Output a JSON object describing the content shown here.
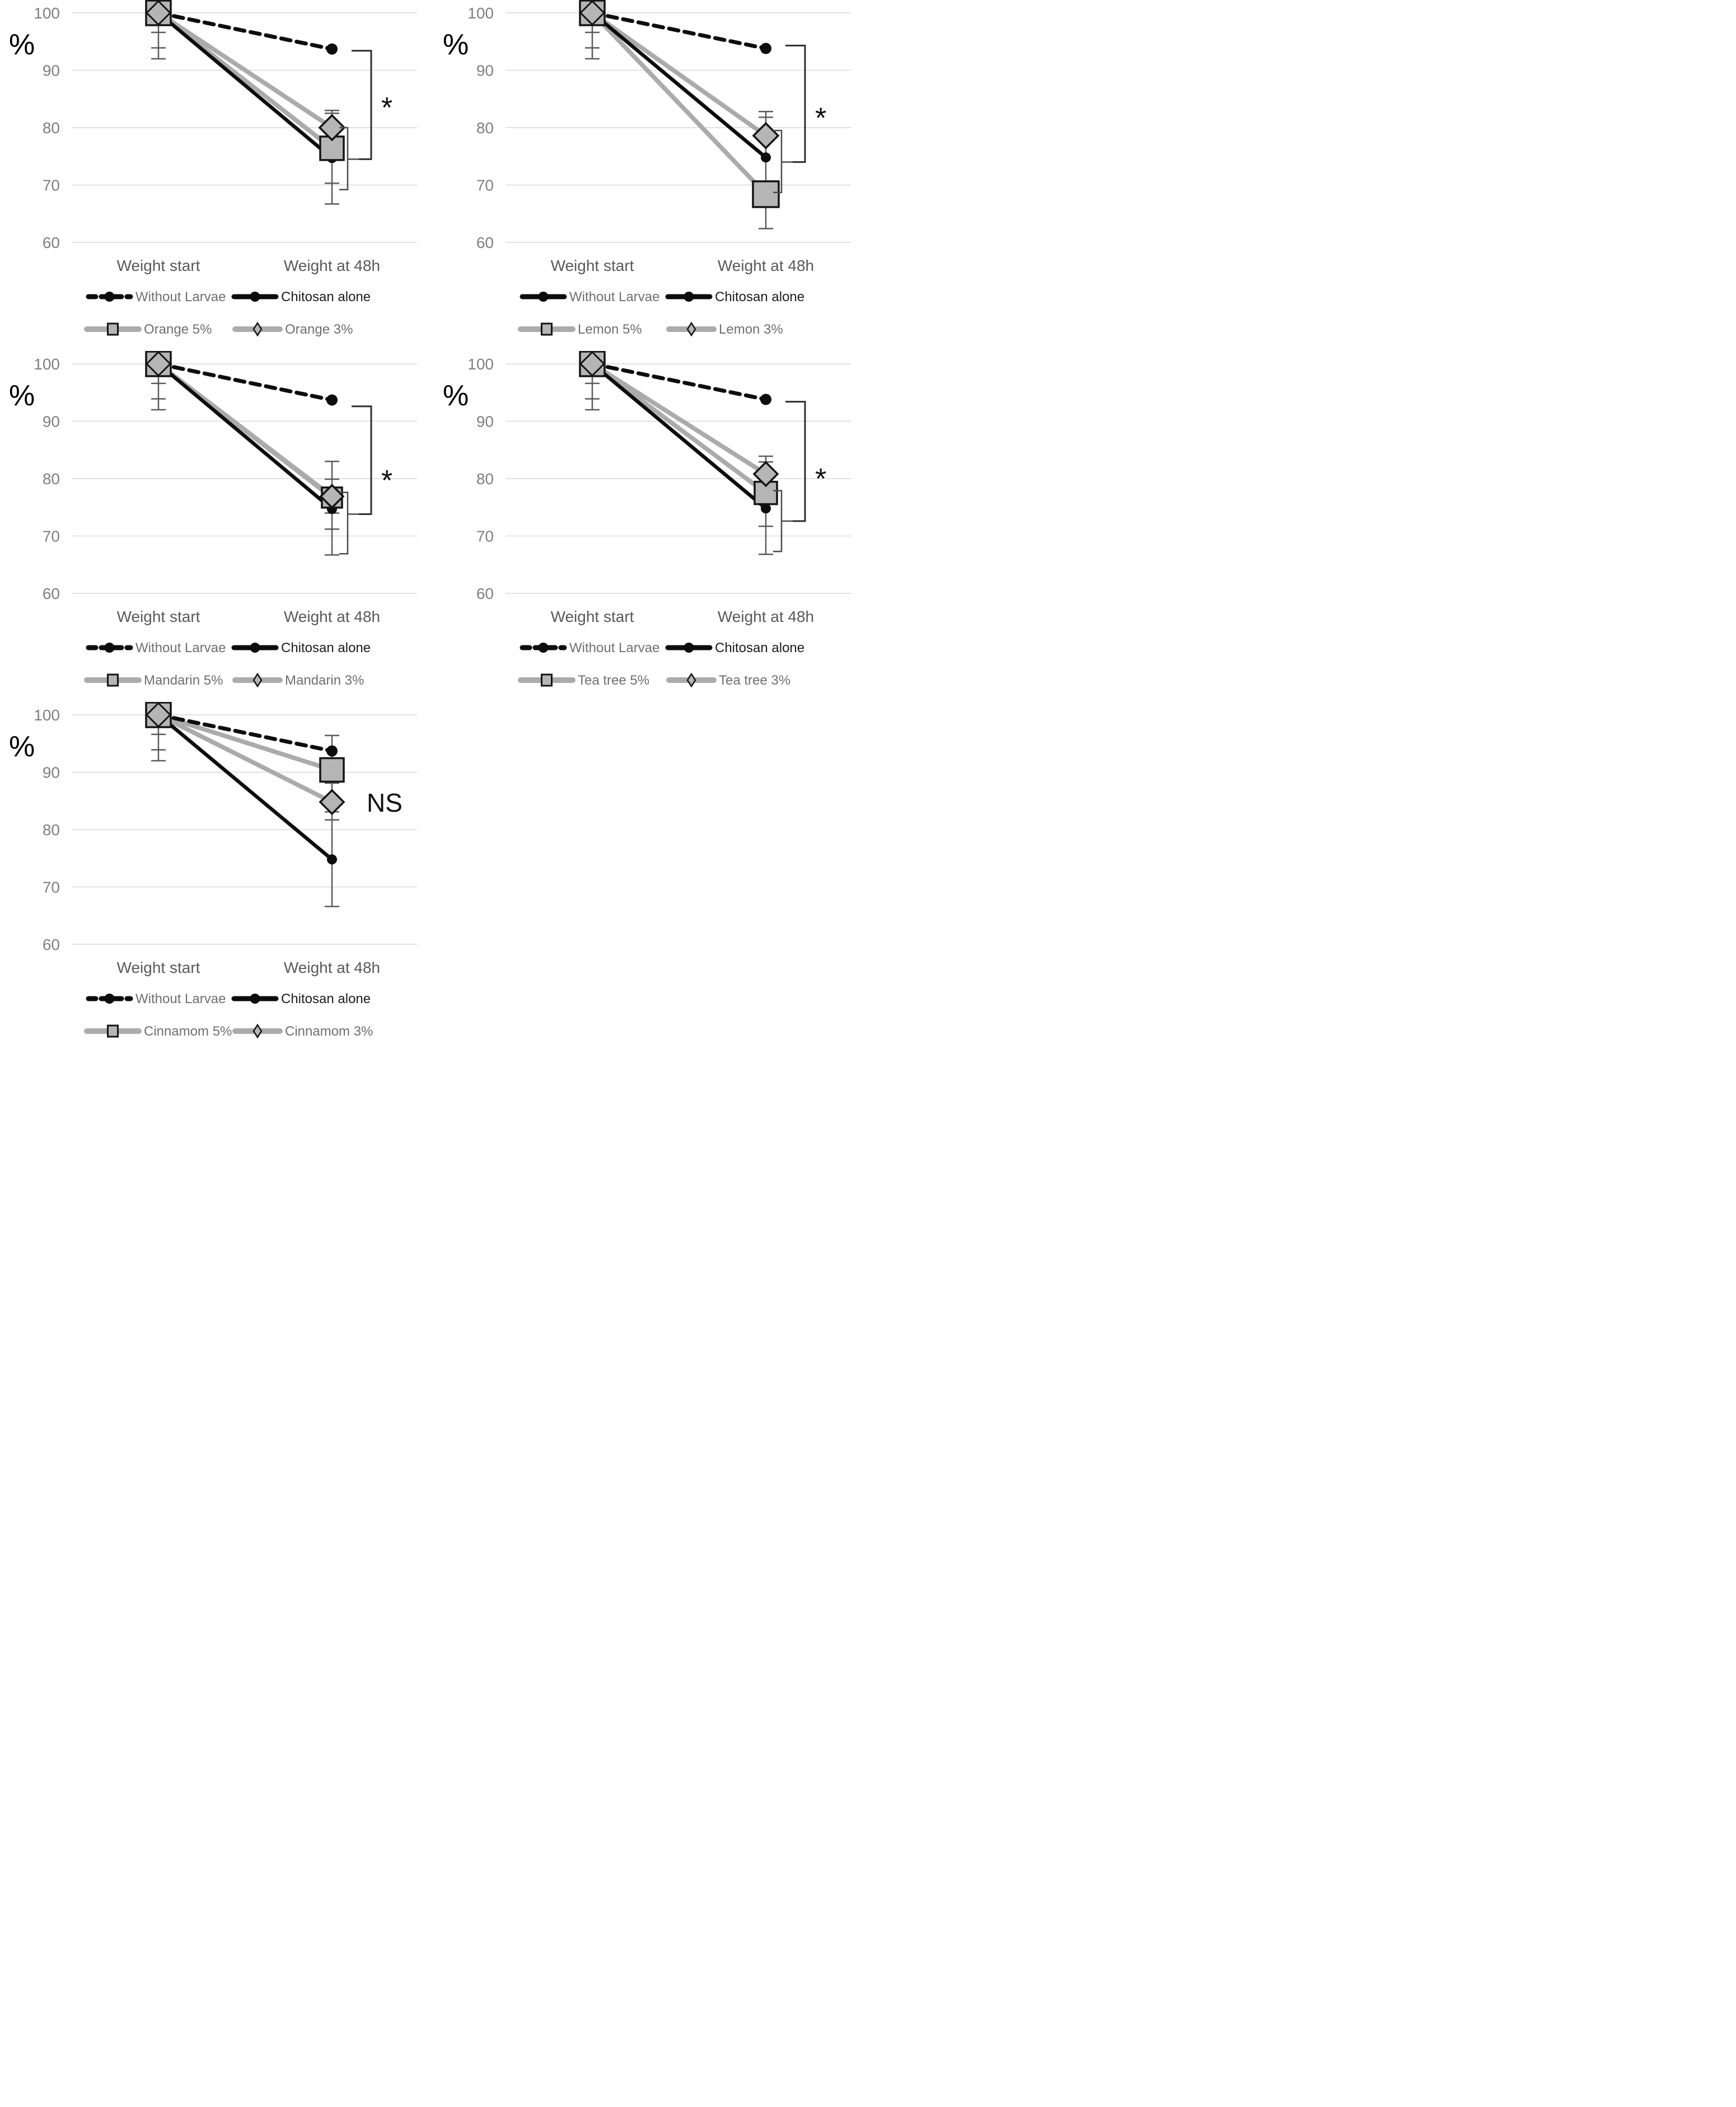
{
  "style": {
    "background": "#ffffff",
    "black": "#0d0d0d",
    "gray_line": "#ababab",
    "marker_fill": "#b5b5b5",
    "marker_stroke": "#141414",
    "error_bar": "#5a5a5a",
    "gridline": "#d9d9d9",
    "tick_label": "#7f7f7f",
    "axis_label": "#595959",
    "legend_label": "#6f6f6f",
    "legend_label_dark": "#1c1c1c",
    "annotation": "#111111",
    "bracket": "#2e2e2e"
  },
  "chart_data": [
    {
      "id": "orange",
      "type": "line",
      "ylabel": "%",
      "yticks": [
        100,
        90,
        80,
        70,
        60
      ],
      "ylim": [
        58,
        102
      ],
      "grid": true,
      "x_categories": [
        "Weight start",
        "Weight at 48h"
      ],
      "series": [
        {
          "name": "Without Larvae",
          "values": [
            100,
            93.7
          ],
          "style": "dashed-black",
          "marker": "circle",
          "marker_size": 10
        },
        {
          "name": "Chitosan alone",
          "values": [
            100,
            74.7
          ],
          "style": "solid-black",
          "marker": "circle",
          "marker_size": 9
        },
        {
          "name": "Orange 5%",
          "values": [
            100,
            76.4
          ],
          "style": "solid-gray",
          "marker": "square",
          "marker_size": 42
        },
        {
          "name": "Orange 3%",
          "values": [
            100,
            80.0
          ],
          "style": "solid-gray",
          "marker": "diamond",
          "marker_size": 36
        }
      ],
      "error_bars": [
        {
          "x": 0,
          "from": 100,
          "to": 92,
          "caps": [
            96.6,
            93.9,
            92
          ]
        },
        {
          "x": 1,
          "from": 83,
          "to": 66.7,
          "caps": [
            83,
            82.5,
            70.3,
            66.7
          ]
        }
      ],
      "significance": {
        "label": "*",
        "label_at": 84.5,
        "outer_bracket": {
          "top": 93.4,
          "bottom": 74.5
        },
        "inner_bracket": {
          "top": 80.0,
          "bottom": 69.2
        }
      },
      "legend": {
        "without_larvae_dashed": true
      }
    },
    {
      "id": "lemon",
      "type": "line",
      "ylabel": "%",
      "yticks": [
        100,
        90,
        80,
        70,
        60
      ],
      "ylim": [
        58,
        102
      ],
      "grid": true,
      "x_categories": [
        "Weight start",
        "Weight at 48h"
      ],
      "series": [
        {
          "name": "Without Larvae",
          "values": [
            100,
            93.8
          ],
          "style": "dashed-black",
          "marker": "circle",
          "marker_size": 10
        },
        {
          "name": "Chitosan alone",
          "values": [
            100,
            74.8
          ],
          "style": "solid-black",
          "marker": "circle",
          "marker_size": 9
        },
        {
          "name": "Lemon 5%",
          "values": [
            100,
            68.4
          ],
          "style": "solid-gray",
          "marker": "square",
          "marker_size": 46
        },
        {
          "name": "Lemon 3%",
          "values": [
            100,
            78.6
          ],
          "style": "solid-gray",
          "marker": "diamond",
          "marker_size": 36
        }
      ],
      "error_bars": [
        {
          "x": 0,
          "from": 100,
          "to": 92,
          "caps": [
            96.6,
            93.9,
            92
          ]
        },
        {
          "x": 1,
          "from": 82.8,
          "to": 62.4,
          "caps": [
            82.8,
            81.8,
            62.4
          ]
        }
      ],
      "significance": {
        "label": "*",
        "label_at": 82.7,
        "outer_bracket": {
          "top": 94.3,
          "bottom": 74.0
        },
        "inner_bracket": {
          "top": 79.5,
          "bottom": 68.7
        }
      },
      "legend": {
        "without_larvae_dashed": false
      }
    },
    {
      "id": "mandarin",
      "type": "line",
      "ylabel": "%",
      "yticks": [
        100,
        90,
        80,
        70,
        60
      ],
      "ylim": [
        58,
        102
      ],
      "grid": true,
      "x_categories": [
        "Weight start",
        "Weight at 48h"
      ],
      "series": [
        {
          "name": "Without Larvae",
          "values": [
            100,
            93.7
          ],
          "style": "dashed-black",
          "marker": "circle",
          "marker_size": 10
        },
        {
          "name": "Chitosan alone",
          "values": [
            100,
            74.7
          ],
          "style": "solid-black",
          "marker": "circle",
          "marker_size": 9
        },
        {
          "name": "Mandarin 5%",
          "values": [
            100,
            76.7
          ],
          "style": "solid-gray",
          "marker": "square",
          "marker_size": 36
        },
        {
          "name": "Mandarin 3%",
          "values": [
            100,
            76.9
          ],
          "style": "solid-gray",
          "marker": "diamond",
          "marker_size": 32
        }
      ],
      "error_bars": [
        {
          "x": 0,
          "from": 100,
          "to": 92,
          "caps": [
            96.6,
            93.9,
            92
          ]
        },
        {
          "x": 1,
          "from": 83,
          "to": 66.7,
          "caps": [
            83,
            79.9,
            74,
            71.2,
            66.7
          ]
        }
      ],
      "significance": {
        "label": "*",
        "label_at": 80.7,
        "outer_bracket": {
          "top": 92.6,
          "bottom": 73.8
        },
        "inner_bracket": {
          "top": 77.6,
          "bottom": 66.9
        }
      },
      "legend": {
        "without_larvae_dashed": true
      }
    },
    {
      "id": "tea-tree",
      "type": "line",
      "ylabel": "%",
      "yticks": [
        100,
        90,
        80,
        70,
        60
      ],
      "ylim": [
        58,
        102
      ],
      "grid": true,
      "x_categories": [
        "Weight start",
        "Weight at 48h"
      ],
      "series": [
        {
          "name": "Without Larvae",
          "values": [
            100,
            93.8
          ],
          "style": "dashed-black",
          "marker": "circle",
          "marker_size": 10
        },
        {
          "name": "Chitosan alone",
          "values": [
            100,
            74.8
          ],
          "style": "solid-black",
          "marker": "circle",
          "marker_size": 9
        },
        {
          "name": "Tea tree 5%",
          "values": [
            100,
            77.5
          ],
          "style": "solid-gray",
          "marker": "square",
          "marker_size": 40
        },
        {
          "name": "Tea tree 3%",
          "values": [
            100,
            80.8
          ],
          "style": "solid-gray",
          "marker": "diamond",
          "marker_size": 34
        }
      ],
      "error_bars": [
        {
          "x": 0,
          "from": 100,
          "to": 92,
          "caps": [
            96.6,
            93.9,
            92
          ]
        },
        {
          "x": 1,
          "from": 83.9,
          "to": 66.8,
          "caps": [
            83.9,
            82.9,
            71.7,
            66.8
          ]
        }
      ],
      "significance": {
        "label": "*",
        "label_at": 81.0,
        "outer_bracket": {
          "top": 93.4,
          "bottom": 72.6
        },
        "inner_bracket": {
          "top": 77.9,
          "bottom": 67.3
        }
      },
      "legend": {
        "without_larvae_dashed": true
      }
    },
    {
      "id": "cinnamom",
      "type": "line",
      "ylabel": "%",
      "yticks": [
        100,
        90,
        80,
        70,
        60
      ],
      "ylim": [
        58,
        102
      ],
      "grid": true,
      "x_categories": [
        "Weight start",
        "Weight at 48h"
      ],
      "series": [
        {
          "name": "Without Larvae",
          "values": [
            100,
            93.7
          ],
          "style": "dashed-black",
          "marker": "circle",
          "marker_size": 10
        },
        {
          "name": "Chitosan alone",
          "values": [
            100,
            74.8
          ],
          "style": "solid-black",
          "marker": "circle",
          "marker_size": 9
        },
        {
          "name": "Cinnamom 5%",
          "values": [
            100,
            90.4
          ],
          "style": "solid-gray",
          "marker": "square",
          "marker_size": 42
        },
        {
          "name": "Cinnamom 3%",
          "values": [
            100,
            84.8
          ],
          "style": "solid-gray",
          "marker": "diamond",
          "marker_size": 34
        }
      ],
      "error_bars": [
        {
          "x": 0,
          "from": 100,
          "to": 92,
          "caps": [
            96.6,
            93.9,
            92
          ]
        },
        {
          "x": 1,
          "from": 96.4,
          "to": 66.6,
          "caps": [
            96.4,
            88.1,
            83.1,
            81.7,
            66.6
          ]
        }
      ],
      "significance": {
        "label": "NS",
        "label_at": 84.7
      },
      "legend": {
        "without_larvae_dashed": true
      }
    }
  ]
}
